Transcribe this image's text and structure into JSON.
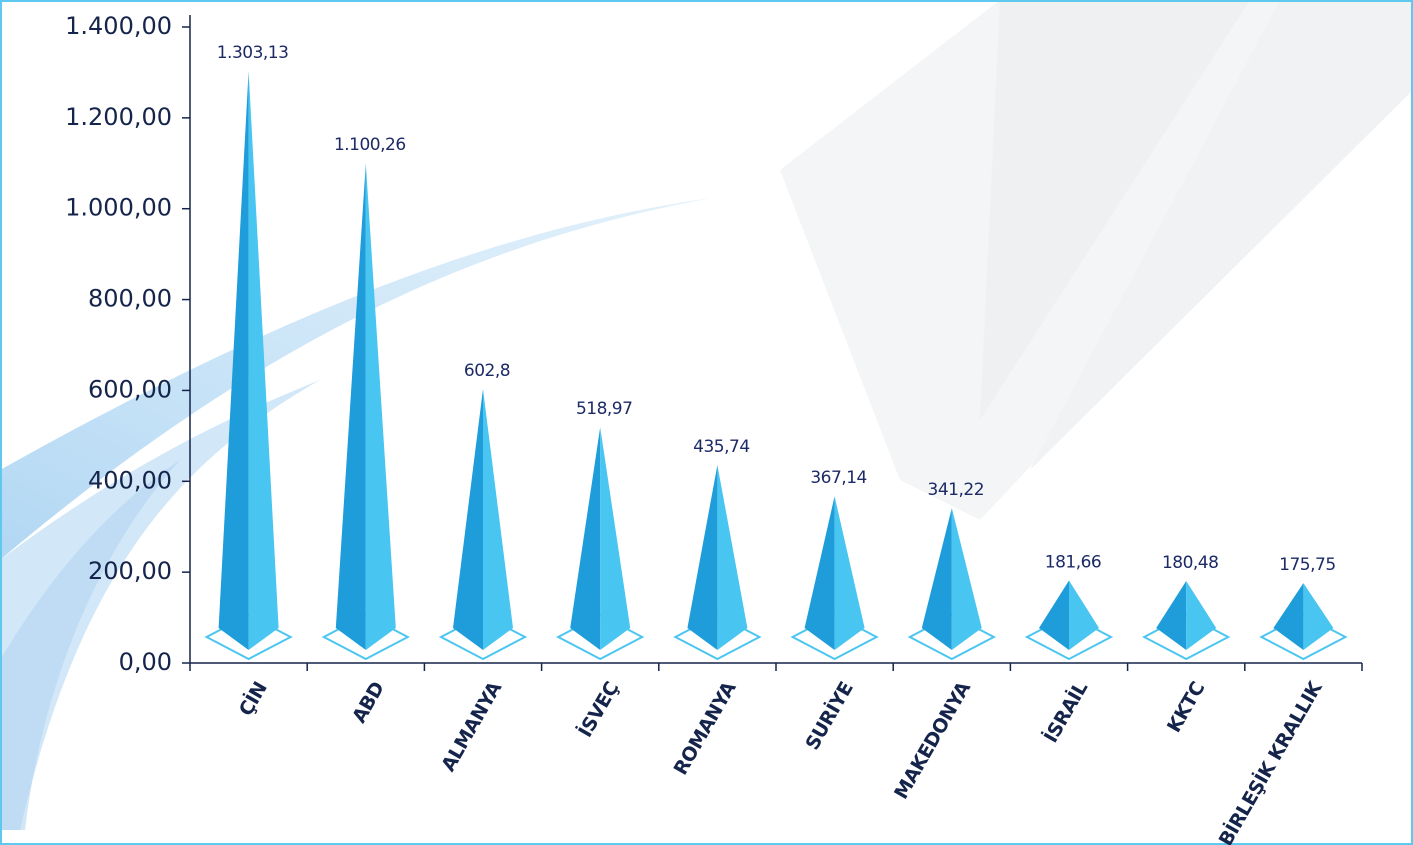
{
  "chart_data": {
    "type": "pyramid",
    "categories": [
      "ÇİN",
      "ABD",
      "ALMANYA",
      "İSVEÇ",
      "ROMANYA",
      "SURİYE",
      "MAKEDONYA",
      "İSRAİL",
      "KKTC",
      "BİRLEŞİK KRALLIK"
    ],
    "values": [
      1303.13,
      1100.26,
      602.8,
      518.97,
      435.74,
      367.14,
      341.22,
      181.66,
      180.48,
      175.75
    ],
    "value_labels": [
      "1.303,13",
      "1.100,26",
      "602,8",
      "518,97",
      "435,74",
      "367,14",
      "341,22",
      "181,66",
      "180,48",
      "175,75"
    ],
    "color": "#1f9ddb",
    "ylim": [
      0,
      1400
    ],
    "yticks": [
      {
        "value": 0,
        "label": "0,00"
      },
      {
        "value": 200,
        "label": "200,00"
      },
      {
        "value": 400,
        "label": "400,00"
      },
      {
        "value": 600,
        "label": "600,00"
      },
      {
        "value": 800,
        "label": "800,00"
      },
      {
        "value": 1000,
        "label": "1.000,00"
      },
      {
        "value": 1200,
        "label": "1.200,00"
      },
      {
        "value": 1400,
        "label": "1.400,00"
      }
    ],
    "grid": false
  }
}
